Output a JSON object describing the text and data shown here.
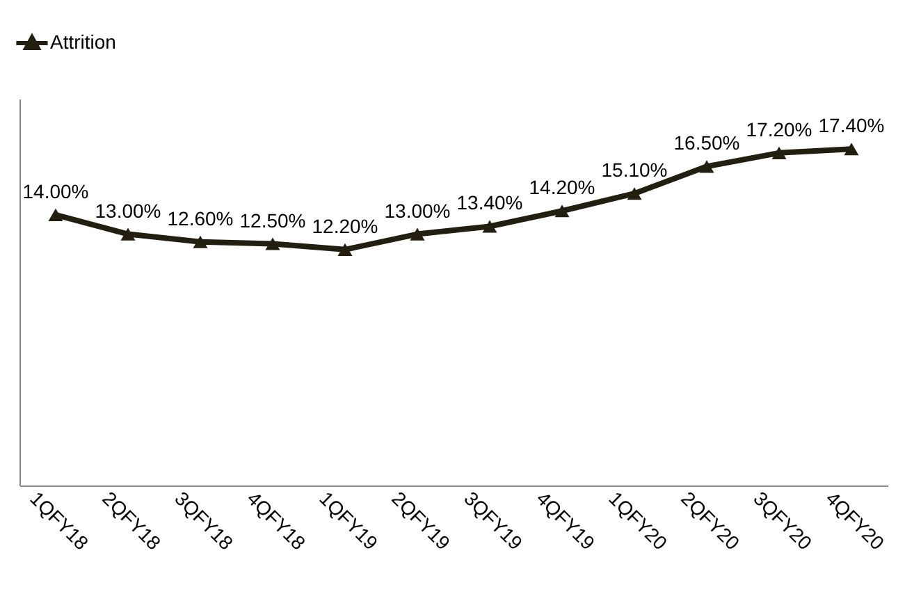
{
  "chart_data": {
    "type": "line",
    "categories": [
      "1QFY18",
      "2QFY18",
      "3QFY18",
      "4QFY18",
      "1QFY19",
      "2QFY19",
      "3QFY19",
      "4QFY19",
      "1QFY20",
      "2QFY20",
      "3QFY20",
      "4QFY20"
    ],
    "series": [
      {
        "name": "Attrition",
        "color": "#231f10",
        "values": [
          14.0,
          13.0,
          12.6,
          12.5,
          12.2,
          13.0,
          13.4,
          14.2,
          15.1,
          16.5,
          17.2,
          17.4
        ],
        "value_labels": [
          "14.00%",
          "13.00%",
          "12.60%",
          "12.50%",
          "12.20%",
          "13.00%",
          "13.40%",
          "14.20%",
          "15.10%",
          "16.50%",
          "17.20%",
          "17.40%"
        ]
      }
    ],
    "ylim": [
      0,
      20
    ],
    "tick_labels": "x",
    "grid": false,
    "legend": "top",
    "marker": "triangle",
    "line_style": "solid"
  }
}
